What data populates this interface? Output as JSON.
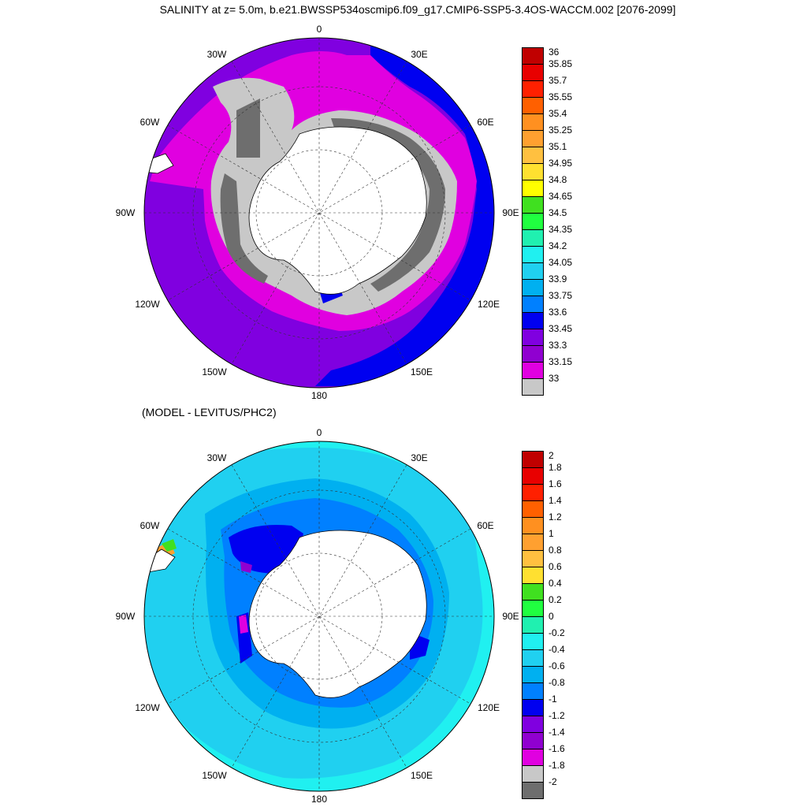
{
  "title": "SALINITY at z=   5.0m, b.e21.BWSSP534oscmip6.f09_g17.CMIP6-SSP5-3.4OS-WACCM.002 [2076-2099]",
  "subtitle": "(MODEL - LEVITUS/PHC2)",
  "lon_labels": {
    "l0": "0",
    "l30e": "30E",
    "l60e": "60E",
    "l90e": "90E",
    "l120e": "120E",
    "l150e": "150E",
    "l180": "180",
    "l150w": "150W",
    "l120w": "120W",
    "l90w": "90W",
    "l60w": "60W",
    "l30w": "30W"
  },
  "colorbar_top": {
    "labels": [
      "36",
      "35.85",
      "35.7",
      "35.55",
      "35.4",
      "35.25",
      "35.1",
      "34.95",
      "34.8",
      "34.65",
      "34.5",
      "34.35",
      "34.2",
      "34.05",
      "33.9",
      "33.75",
      "33.6",
      "33.45",
      "33.3",
      "33.15",
      "33"
    ],
    "colors": [
      "#c00000",
      "#e80000",
      "#ff2000",
      "#ff6000",
      "#ff9020",
      "#ffa030",
      "#ffc040",
      "#ffe030",
      "#ffff00",
      "#40e020",
      "#20ff40",
      "#20f0b0",
      "#20f0f0",
      "#20d0f0",
      "#00b0f0",
      "#0080ff",
      "#0000f0",
      "#8000e0",
      "#9000d0",
      "#e000e0",
      "#c8c8c8",
      "#6e6e6e"
    ]
  },
  "colorbar_bottom": {
    "labels": [
      "2",
      "1.8",
      "1.6",
      "1.4",
      "1.2",
      "1",
      "0.8",
      "0.6",
      "0.4",
      "0.2",
      "0",
      "-0.2",
      "-0.4",
      "-0.6",
      "-0.8",
      "-1",
      "-1.2",
      "-1.4",
      "-1.6",
      "-1.8",
      "-2"
    ],
    "colors": [
      "#c00000",
      "#e80000",
      "#ff2000",
      "#ff6000",
      "#ff9020",
      "#ffa030",
      "#ffc040",
      "#ffe030",
      "#40e020",
      "#20ff40",
      "#20f0b0",
      "#20f0f0",
      "#20d0f0",
      "#00b0f0",
      "#0080ff",
      "#0000f0",
      "#8000e0",
      "#9000d0",
      "#e000e0",
      "#c8c8c8",
      "#6e6e6e"
    ]
  }
}
